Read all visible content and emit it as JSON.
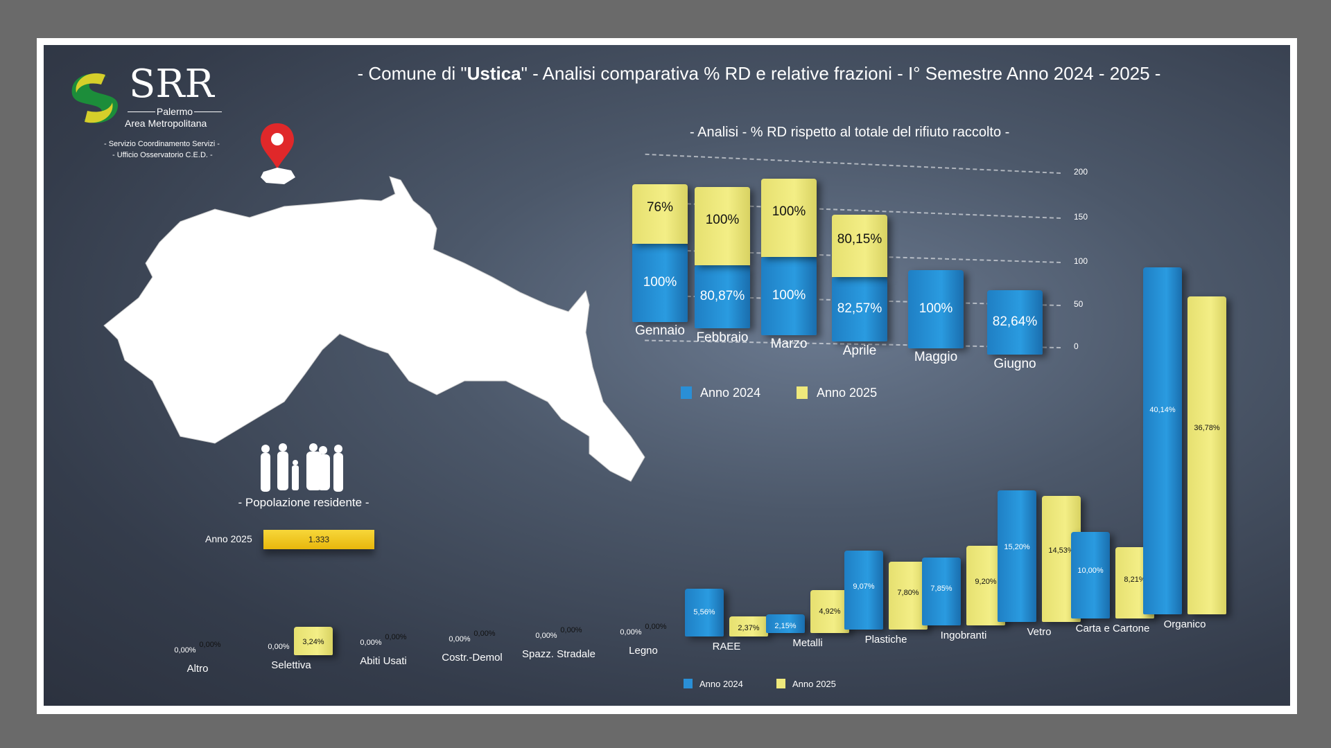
{
  "header": {
    "title_prefix": "- Comune di \"",
    "title_name": "Ustica",
    "title_suffix": "\" - Analisi comparativa % RD e relative frazioni - I° Semestre Anno 2024 - 2025 -"
  },
  "logo": {
    "name": "SRR",
    "line1": "Palermo",
    "line2": "Area Metropolitana",
    "sub1": "- Servizio Coordinamento Servizi -",
    "sub2": "- Ufficio Osservatorio C.E.D. -"
  },
  "population": {
    "title": "- Popolazione residente -",
    "label": "Anno 2025",
    "value": "1.333"
  },
  "colors": {
    "anno2024": "#2a8fd6",
    "anno2025": "#efe97c"
  },
  "chart_data": [
    {
      "type": "bar",
      "stacked": true,
      "title": "- Analisi - % RD rispetto al totale del rifiuto raccolto -",
      "categories": [
        "Gennaio",
        "Febbraio",
        "Marzo",
        "Aprile",
        "Maggio",
        "Giugno"
      ],
      "series": [
        {
          "name": "Anno 2024",
          "values": [
            100,
            80.87,
            100,
            82.57,
            100,
            82.64
          ],
          "labels": [
            "100%",
            "80,87%",
            "100%",
            "82,57%",
            "100%",
            "82,64%"
          ]
        },
        {
          "name": "Anno 2025",
          "values": [
            76,
            100,
            100,
            80.15,
            null,
            null
          ],
          "labels": [
            "76%",
            "100%",
            "100%",
            "80,15%",
            "",
            ""
          ]
        }
      ],
      "ylim": [
        0,
        200
      ],
      "yticks": [
        "0",
        "50",
        "100",
        "150",
        "200"
      ],
      "legend": "bottom"
    },
    {
      "type": "bar",
      "title": "",
      "categories": [
        "Altro",
        "Selettiva",
        "Abiti Usati",
        "Costr.-Demol",
        "Spazz. Stradale",
        "Legno",
        "RAEE",
        "Metalli",
        "Plastiche",
        "Ingobranti",
        "Vetro",
        "Carta e Cartone",
        "Organico"
      ],
      "series": [
        {
          "name": "Anno 2024",
          "values": [
            0,
            0,
            0,
            0,
            0,
            0,
            5.56,
            2.15,
            9.07,
            7.85,
            15.2,
            10.0,
            40.14
          ],
          "labels": [
            "0,00%",
            "0,00%",
            "0,00%",
            "0,00%",
            "0,00%",
            "0,00%",
            "5,56%",
            "2,15%",
            "9,07%",
            "7,85%",
            "15,20%",
            "10,00%",
            "40,14%"
          ]
        },
        {
          "name": "Anno 2025",
          "values": [
            0,
            3.24,
            0,
            0,
            0,
            0,
            2.37,
            4.92,
            7.8,
            9.2,
            14.53,
            8.21,
            36.78
          ],
          "labels": [
            "0,00%",
            "3,24%",
            "0,00%",
            "0,00%",
            "0,00%",
            "0,00%",
            "2,37%",
            "4,92%",
            "7,80%",
            "9,20%",
            "14,53%",
            "8,21%",
            "36,78%"
          ]
        }
      ],
      "legend": "bottom-left"
    }
  ]
}
